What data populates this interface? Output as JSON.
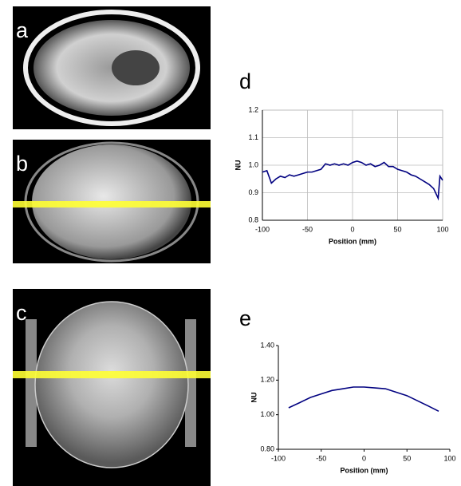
{
  "image_panels": [
    {
      "label": "a"
    },
    {
      "label": "b"
    },
    {
      "label": "c"
    }
  ],
  "chart_data": [
    {
      "type": "line",
      "panel_label": "d",
      "x_label": "Position (mm)",
      "y_label": "NU",
      "x": [
        -100,
        -95,
        -90,
        -85,
        -80,
        -75,
        -70,
        -65,
        -60,
        -55,
        -50,
        -45,
        -40,
        -35,
        -30,
        -25,
        -20,
        -15,
        -10,
        -5,
        0,
        5,
        10,
        15,
        20,
        25,
        30,
        35,
        40,
        45,
        50,
        55,
        60,
        65,
        70,
        75,
        80,
        85,
        90,
        95,
        97,
        100
      ],
      "series": [
        {
          "color": "#000080",
          "values": [
            0.975,
            0.98,
            0.935,
            0.95,
            0.96,
            0.955,
            0.965,
            0.96,
            0.965,
            0.97,
            0.975,
            0.975,
            0.98,
            0.985,
            1.005,
            1.0,
            1.005,
            1.0,
            1.005,
            1.0,
            1.01,
            1.015,
            1.01,
            1.0,
            1.005,
            0.995,
            1.0,
            1.01,
            0.995,
            0.995,
            0.985,
            0.98,
            0.975,
            0.965,
            0.96,
            0.95,
            0.94,
            0.93,
            0.915,
            0.88,
            0.96,
            0.945
          ]
        }
      ],
      "xlim": [
        -100,
        100
      ],
      "xticks": [
        -100,
        -50,
        0,
        50,
        100
      ],
      "ylim": [
        0.8,
        1.2
      ],
      "yticks": [
        0.8,
        0.9,
        {
          "value": 1,
          "label": "1.0"
        },
        1.1,
        1.2
      ],
      "grid": true
    },
    {
      "type": "line",
      "panel_label": "e",
      "x_label": "Position (mm)",
      "y_label": "NU",
      "x": [
        -88,
        -75,
        -62.5,
        -50,
        -37.5,
        -25,
        -12.5,
        0,
        12.5,
        25,
        37.5,
        50,
        62.5,
        75,
        87
      ],
      "series": [
        {
          "color": "#000080",
          "values": [
            1.04,
            1.07,
            1.1,
            1.12,
            1.14,
            1.15,
            1.16,
            1.16,
            1.155,
            1.15,
            1.13,
            1.11,
            1.08,
            1.05,
            1.02
          ]
        }
      ],
      "xlim": [
        -100,
        100
      ],
      "xticks": [
        -100,
        -50,
        0,
        50,
        100
      ],
      "ylim": [
        0.8,
        1.4
      ],
      "yticks": [
        {
          "value": 0.8,
          "label": "0.80"
        },
        {
          "value": 1,
          "label": "1.00"
        },
        {
          "value": 1.2,
          "label": "1.20"
        },
        {
          "value": 1.4,
          "label": "1.40"
        }
      ],
      "grid": false
    }
  ]
}
